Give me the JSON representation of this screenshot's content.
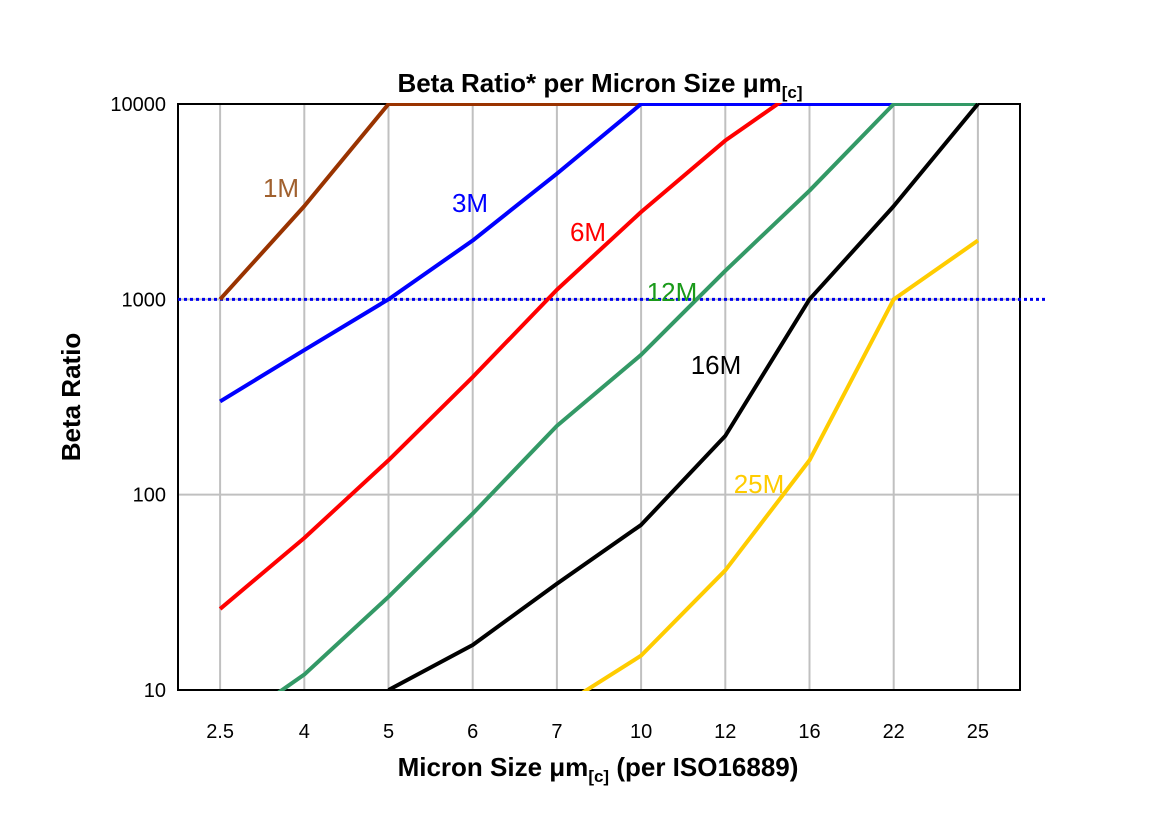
{
  "chart_data": {
    "type": "line",
    "title": "Beta Ratio* per Micron Size μm",
    "title_subscript": "[c]",
    "xlabel": "Micron Size μm",
    "xlabel_subscript": "[c]",
    "xlabel_suffix": " (per ISO16889)",
    "ylabel": "Beta Ratio",
    "categories": [
      "2.5",
      "4",
      "5",
      "6",
      "7",
      "10",
      "12",
      "16",
      "22",
      "25"
    ],
    "y_scale": "log",
    "ylim": [
      10,
      10000
    ],
    "y_ticks": [
      "10",
      "100",
      "1000",
      "10000"
    ],
    "grid": true,
    "reference_line": {
      "y": 1000,
      "style": "dotted",
      "color": "#0000ee"
    },
    "series": [
      {
        "name": "1M",
        "color": "#993300",
        "label_color": "#a0602e",
        "values": [
          1000,
          3000,
          10000,
          10000,
          10000,
          10000,
          null,
          null,
          null,
          null
        ]
      },
      {
        "name": "3M",
        "color": "#0000ff",
        "label_color": "#0000ff",
        "values": [
          300,
          550,
          1000,
          2000,
          4400,
          10000,
          10000,
          10000,
          10000,
          null
        ]
      },
      {
        "name": "6M",
        "color": "#ff0000",
        "label_color": "#ff0000",
        "values": [
          26,
          60,
          150,
          400,
          1120,
          2800,
          6500,
          13000,
          null,
          null
        ]
      },
      {
        "name": "12M",
        "color": "#339966",
        "label_color": "#1a9a1a",
        "values": [
          6,
          12,
          30,
          80,
          225,
          520,
          1400,
          3600,
          10000,
          10000
        ]
      },
      {
        "name": "16M",
        "color": "#000000",
        "label_color": "#000000",
        "values": [
          null,
          null,
          10,
          17,
          35,
          70,
          200,
          1000,
          3000,
          10000
        ]
      },
      {
        "name": "25M",
        "color": "#ffcc00",
        "label_color": "#ffcc00",
        "values": [
          null,
          null,
          null,
          null,
          8,
          15,
          41,
          150,
          1000,
          2000
        ]
      }
    ]
  }
}
